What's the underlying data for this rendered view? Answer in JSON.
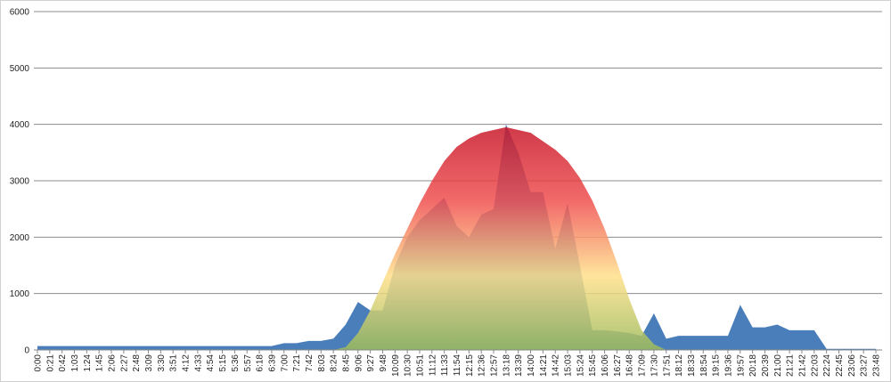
{
  "chart_data": {
    "type": "area",
    "categories": [
      "0:00",
      "0:21",
      "0:42",
      "1:03",
      "1:24",
      "1:45",
      "2:06",
      "2:27",
      "2:48",
      "3:09",
      "3:30",
      "3:51",
      "4:12",
      "4:33",
      "4:54",
      "5:15",
      "5:36",
      "5:57",
      "6:18",
      "6:39",
      "7:00",
      "7:21",
      "7:42",
      "8:03",
      "8:24",
      "8:45",
      "9:06",
      "9:27",
      "9:48",
      "10:09",
      "10:30",
      "10:51",
      "11:12",
      "11:33",
      "11:54",
      "12:15",
      "12:36",
      "12:57",
      "13:18",
      "13:39",
      "14:00",
      "14:21",
      "14:42",
      "15:03",
      "15:24",
      "15:45",
      "16:06",
      "16:27",
      "16:48",
      "17:09",
      "17:30",
      "17:51",
      "18:12",
      "18:33",
      "18:54",
      "19:15",
      "19:36",
      "19:57",
      "20:18",
      "20:39",
      "21:00",
      "21:21",
      "21:42",
      "22:03",
      "22:24",
      "22:45",
      "23:06",
      "23:27",
      "23:48"
    ],
    "series": [
      {
        "color": "#4a7ebb",
        "values": [
          70,
          70,
          70,
          70,
          70,
          70,
          70,
          70,
          70,
          70,
          70,
          70,
          70,
          70,
          70,
          70,
          70,
          70,
          70,
          70,
          120,
          120,
          160,
          160,
          200,
          450,
          850,
          700,
          700,
          1500,
          2000,
          2300,
          2500,
          2700,
          2200,
          2000,
          2400,
          2500,
          4000,
          3500,
          2800,
          2800,
          1800,
          2600,
          1500,
          350,
          350,
          330,
          300,
          250,
          650,
          200,
          250,
          250,
          250,
          250,
          250,
          800,
          400,
          400,
          450,
          350,
          350,
          350,
          20,
          20,
          20,
          20,
          20
        ]
      },
      {
        "colors": [
          "#c8182a",
          "#f05050",
          "#ffe08a",
          "#9bbb59"
        ],
        "opacity": 0.85,
        "values": [
          0,
          0,
          0,
          0,
          0,
          0,
          0,
          0,
          0,
          0,
          0,
          0,
          0,
          0,
          0,
          0,
          0,
          0,
          0,
          0,
          0,
          0,
          0,
          0,
          0,
          50,
          300,
          700,
          1200,
          1700,
          2150,
          2600,
          3000,
          3350,
          3600,
          3750,
          3850,
          3900,
          3950,
          3900,
          3850,
          3700,
          3550,
          3350,
          3050,
          2650,
          2150,
          1550,
          900,
          350,
          100,
          0,
          0,
          0,
          0,
          0,
          0,
          0,
          0,
          0,
          0,
          0,
          0,
          0,
          0,
          0,
          0,
          0,
          0
        ]
      }
    ],
    "ylim": [
      0,
      6000
    ],
    "yticks": [
      0,
      1000,
      2000,
      3000,
      4000,
      5000,
      6000
    ],
    "grid": true
  }
}
